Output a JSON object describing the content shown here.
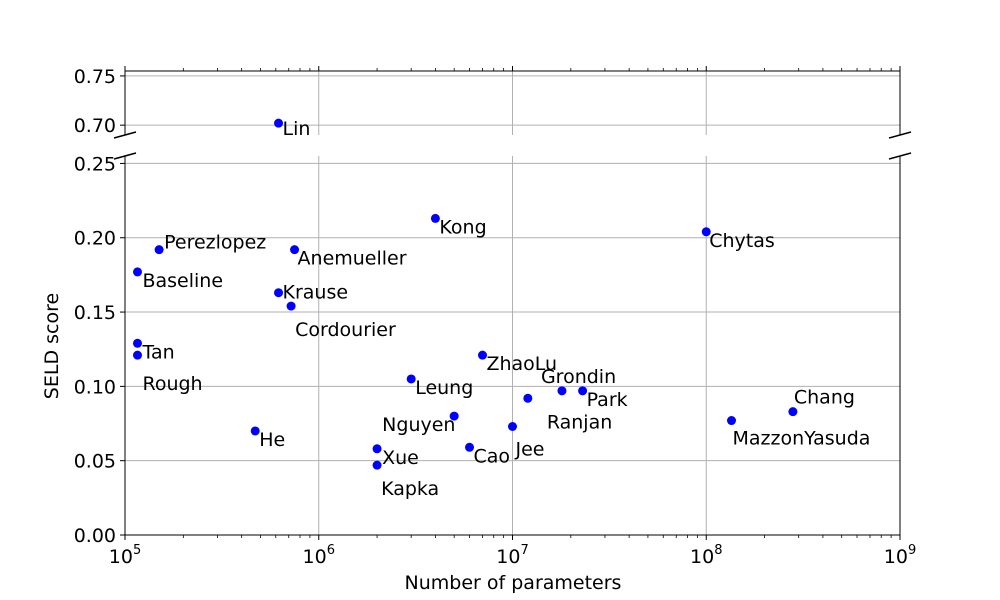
{
  "chart_data": {
    "type": "scatter",
    "xlabel": "Number of parameters",
    "ylabel": "SELD score",
    "xscale": "log",
    "xlim": [
      100000,
      1000000000
    ],
    "x_tick_labels": [
      "10^5",
      "10^6",
      "10^7",
      "10^8",
      "10^9"
    ],
    "broken_y_axis": true,
    "upper_panel": {
      "ylim": [
        0.69,
        0.755
      ],
      "y_ticks": [
        "0.70",
        "0.75"
      ]
    },
    "lower_panel": {
      "ylim": [
        0.0,
        0.255
      ],
      "y_ticks": [
        "0.00",
        "0.05",
        "0.10",
        "0.15",
        "0.20",
        "0.25"
      ]
    },
    "grid": true,
    "marker_color": "#0000ff",
    "points": [
      {
        "label": "Lin",
        "x": 620000,
        "y": 0.702
      },
      {
        "label": "Kong",
        "x": 4000000,
        "y": 0.213
      },
      {
        "label": "Chytas",
        "x": 100000000,
        "y": 0.204
      },
      {
        "label": "Perezlopez",
        "x": 150000,
        "y": 0.192
      },
      {
        "label": "Anemueller",
        "x": 750000,
        "y": 0.192
      },
      {
        "label": "Baseline",
        "x": 116000,
        "y": 0.177
      },
      {
        "label": "Krause",
        "x": 620000,
        "y": 0.163
      },
      {
        "label": "Cordourier",
        "x": 720000,
        "y": 0.154
      },
      {
        "label": "Tan",
        "x": 116000,
        "y": 0.129
      },
      {
        "label": "Rough",
        "x": 116000,
        "y": 0.121
      },
      {
        "label": "ZhaoLu",
        "x": 7000000,
        "y": 0.121
      },
      {
        "label": "Grondin",
        "x": 18000000,
        "y": 0.097
      },
      {
        "label": "Park",
        "x": 23000000,
        "y": 0.097
      },
      {
        "label": "Leung",
        "x": 3000000,
        "y": 0.105
      },
      {
        "label": "Ranjan",
        "x": 12000000,
        "y": 0.092
      },
      {
        "label": "Nguyen",
        "x": 5000000,
        "y": 0.08
      },
      {
        "label": "Jee",
        "x": 10000000,
        "y": 0.073
      },
      {
        "label": "He",
        "x": 470000,
        "y": 0.07
      },
      {
        "label": "Xue",
        "x": 2000000,
        "y": 0.058
      },
      {
        "label": "Cao",
        "x": 6000000,
        "y": 0.059
      },
      {
        "label": "Kapka",
        "x": 2000000,
        "y": 0.047
      },
      {
        "label": "Chang",
        "x": 280000000,
        "y": 0.083
      },
      {
        "label": "MazzonYasuda",
        "x": 135000000,
        "y": 0.077
      }
    ]
  }
}
